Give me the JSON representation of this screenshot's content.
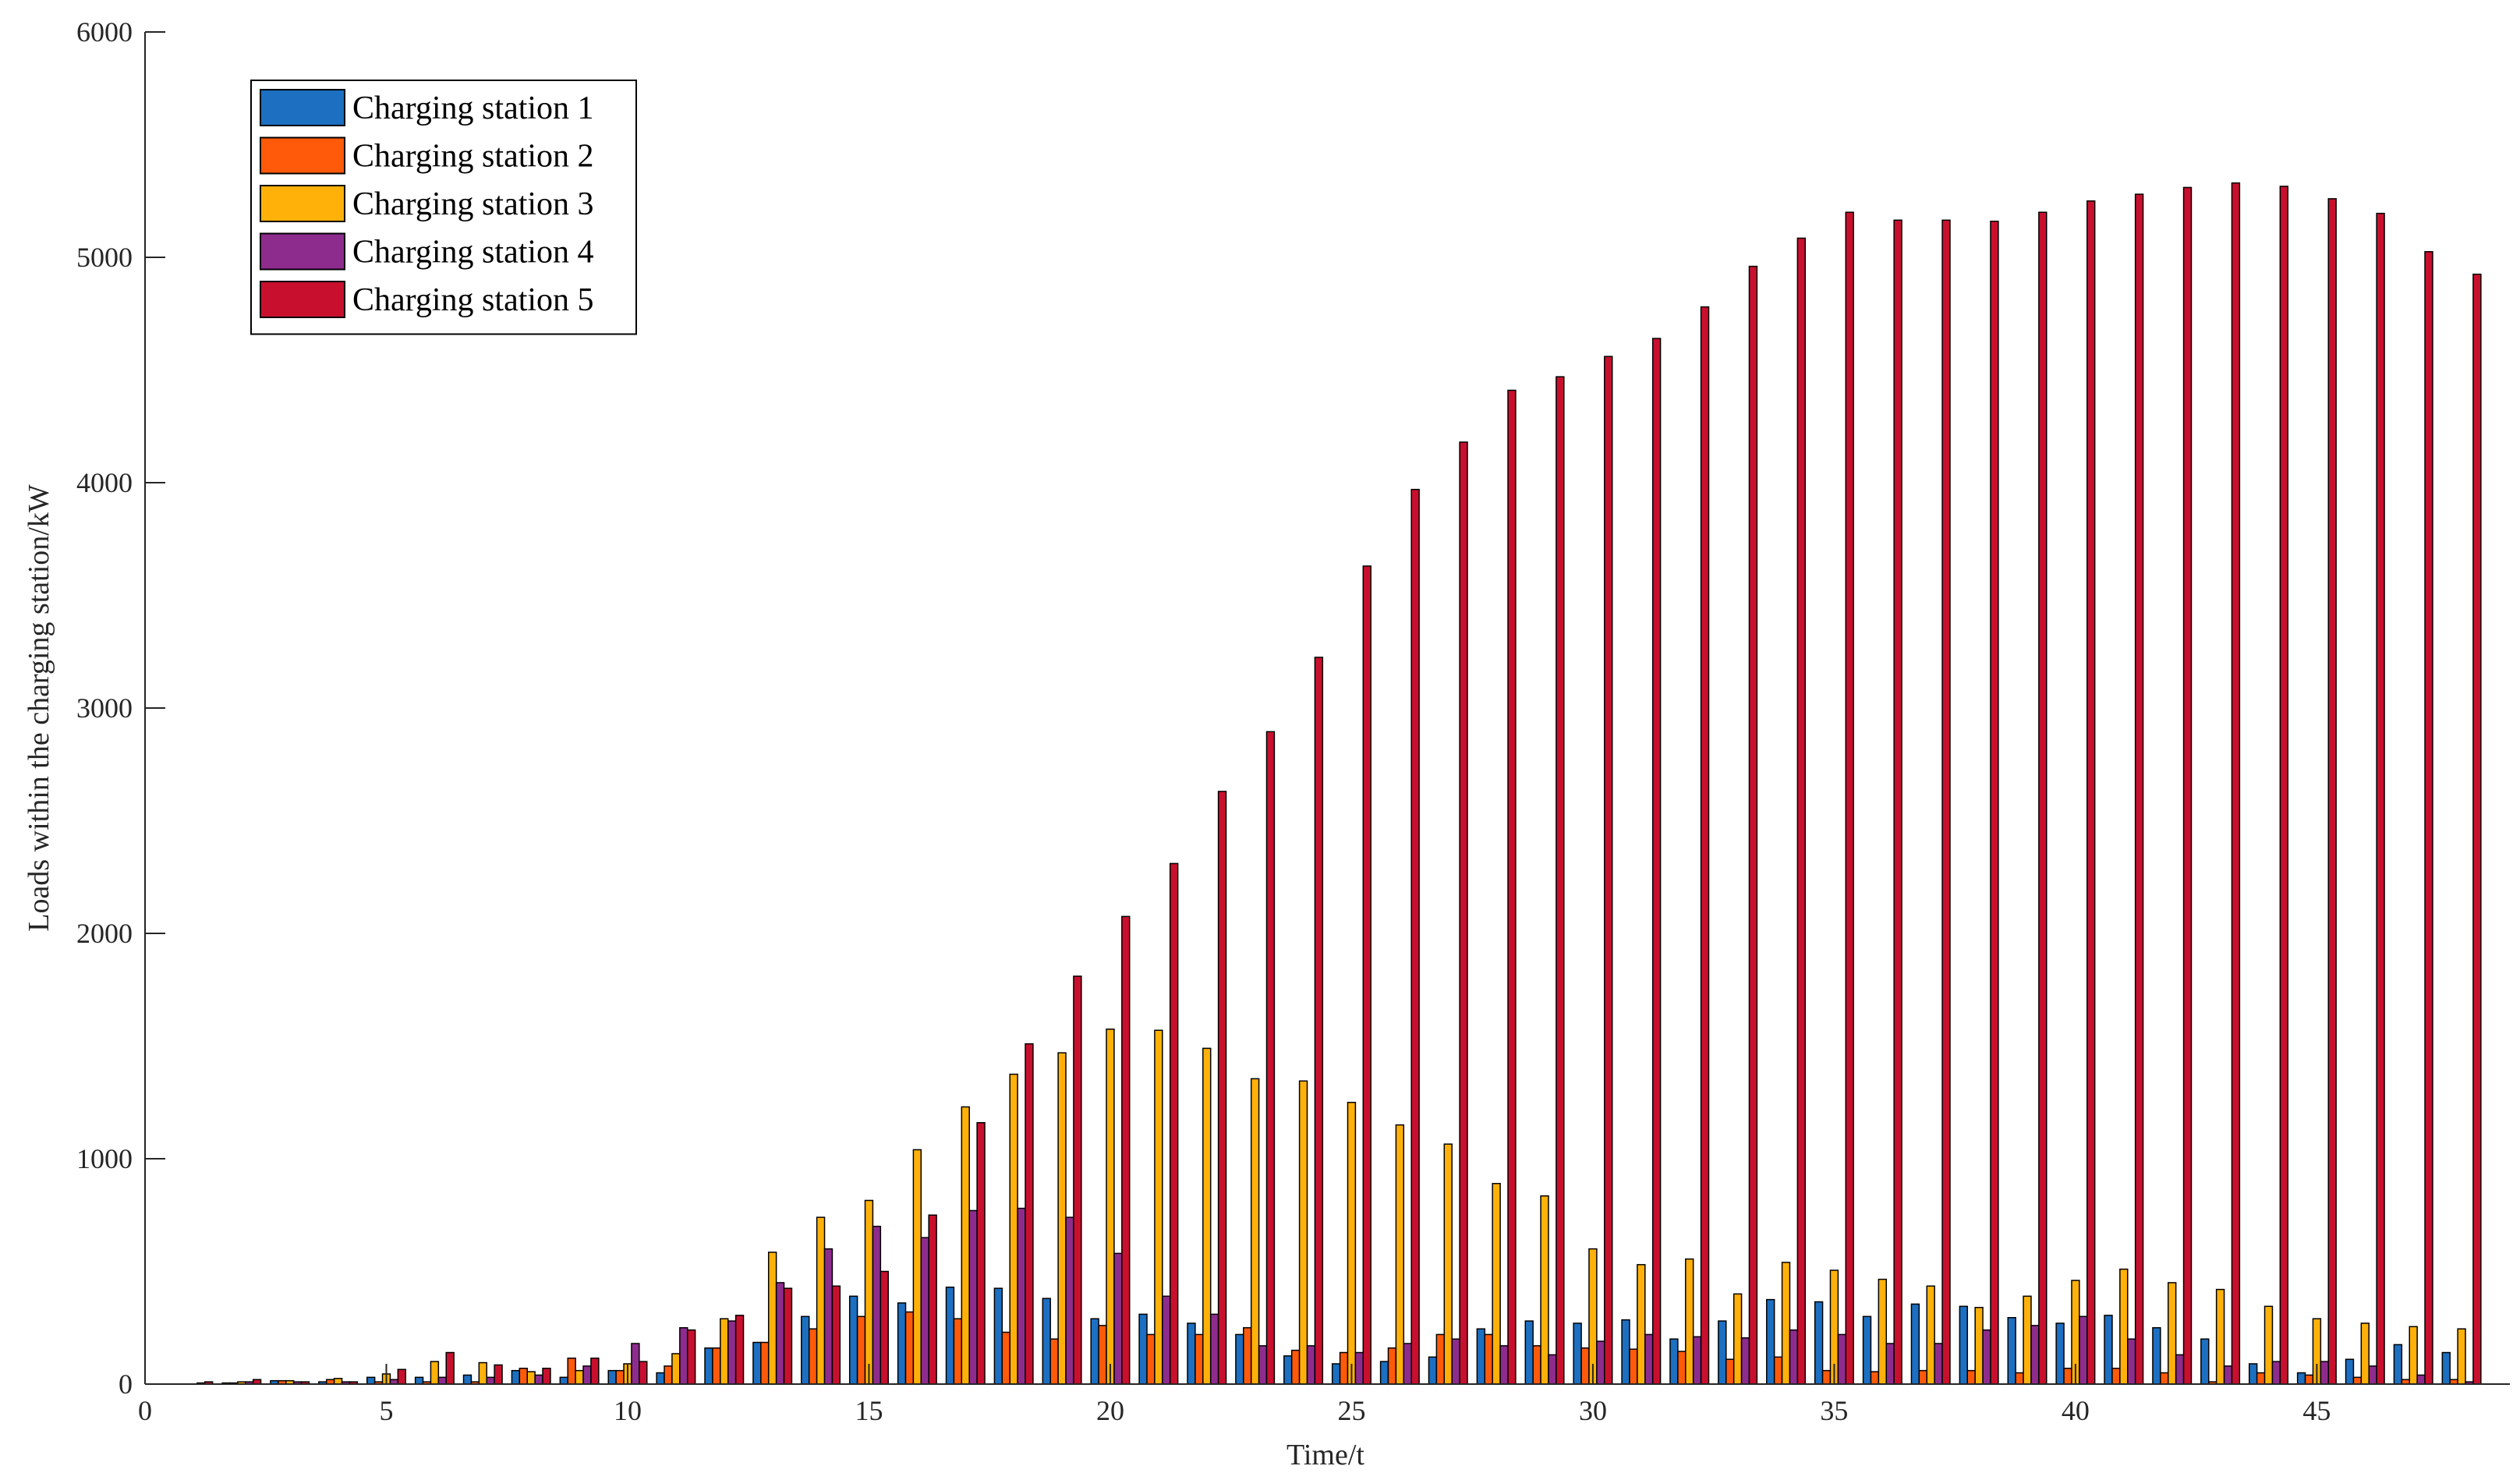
{
  "chart_data": {
    "type": "bar",
    "x": [
      1,
      2,
      3,
      4,
      5,
      6,
      7,
      8,
      9,
      10,
      11,
      12,
      13,
      14,
      15,
      16,
      17,
      18,
      19,
      20,
      21,
      22,
      23,
      24,
      25,
      26,
      27,
      28,
      29,
      30,
      31,
      32,
      33,
      34,
      35,
      36,
      37,
      38,
      39,
      40,
      41,
      42,
      43,
      44,
      45,
      46,
      47,
      48
    ],
    "xlabel": "Time/t",
    "ylabel": "Loads within the charging station/kW",
    "xlim": [
      0,
      49
    ],
    "xticks": [
      0,
      5,
      10,
      15,
      20,
      25,
      30,
      35,
      40,
      45
    ],
    "ylim": [
      0,
      6000
    ],
    "yticks": [
      0,
      1000,
      2000,
      3000,
      4000,
      5000,
      6000
    ],
    "legend": "upper left",
    "series": [
      {
        "name": "Charging station 1",
        "color": "#1c6fc1",
        "values": [
          0,
          5,
          15,
          10,
          30,
          30,
          40,
          60,
          30,
          60,
          50,
          160,
          185,
          300,
          390,
          360,
          430,
          425,
          380,
          290,
          310,
          270,
          220,
          125,
          90,
          100,
          120,
          245,
          280,
          270,
          285,
          200,
          280,
          375,
          365,
          300,
          355,
          345,
          295,
          270,
          305,
          250,
          200,
          90,
          50,
          110,
          175,
          140
        ]
      },
      {
        "name": "Charging station 2",
        "color": "#ff5a0a",
        "values": [
          0,
          5,
          15,
          20,
          10,
          10,
          10,
          70,
          115,
          60,
          80,
          160,
          185,
          245,
          300,
          320,
          290,
          230,
          200,
          260,
          220,
          220,
          250,
          150,
          140,
          160,
          220,
          220,
          170,
          160,
          155,
          145,
          110,
          120,
          60,
          55,
          60,
          60,
          50,
          70,
          70,
          50,
          10,
          50,
          40,
          30,
          20,
          20
        ]
      },
      {
        "name": "Charging station 3",
        "color": "#ffb10a",
        "values": [
          0,
          10,
          15,
          25,
          45,
          100,
          95,
          55,
          60,
          90,
          135,
          290,
          585,
          740,
          815,
          1040,
          1230,
          1375,
          1470,
          1575,
          1570,
          1490,
          1355,
          1345,
          1250,
          1150,
          1065,
          890,
          835,
          600,
          530,
          555,
          400,
          540,
          505,
          465,
          435,
          340,
          390,
          460,
          510,
          450,
          420,
          345,
          290,
          270,
          255,
          245
        ]
      },
      {
        "name": "Charging station 4",
        "color": "#8e2c8e",
        "values": [
          5,
          10,
          10,
          10,
          20,
          30,
          30,
          40,
          80,
          180,
          250,
          280,
          450,
          600,
          700,
          650,
          770,
          780,
          740,
          580,
          390,
          310,
          170,
          170,
          140,
          180,
          200,
          170,
          130,
          190,
          220,
          210,
          205,
          240,
          220,
          180,
          180,
          240,
          260,
          300,
          200,
          130,
          80,
          100,
          100,
          80,
          40,
          10
        ]
      },
      {
        "name": "Charging station 5",
        "color": "#c8102e",
        "values": [
          10,
          20,
          10,
          10,
          65,
          140,
          85,
          70,
          115,
          100,
          240,
          305,
          425,
          435,
          500,
          750,
          1160,
          1510,
          1810,
          2075,
          2310,
          2630,
          2895,
          3225,
          3630,
          3970,
          4180,
          4410,
          4470,
          4560,
          4640,
          4780,
          4960,
          5085,
          5200,
          5165,
          5165,
          5160,
          5200,
          5250,
          5280,
          5310,
          5330,
          5315,
          5260,
          5195,
          5025,
          4925
        ]
      }
    ]
  }
}
